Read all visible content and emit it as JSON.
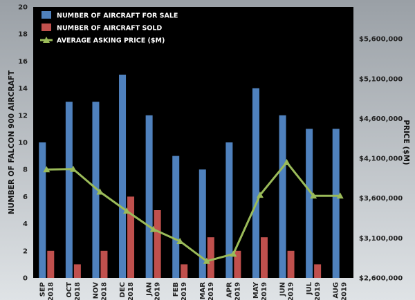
{
  "chart_data": {
    "type": "bar",
    "categories": [
      [
        "SEP",
        "2018"
      ],
      [
        "OCT",
        "2018"
      ],
      [
        "NOV",
        "2018"
      ],
      [
        "DEC",
        "2018"
      ],
      [
        "JAN",
        "2019"
      ],
      [
        "FEB",
        "2019"
      ],
      [
        "MAR",
        "2019"
      ],
      [
        "APR",
        "2019"
      ],
      [
        "MAY",
        "2019"
      ],
      [
        "JUN",
        "2019"
      ],
      [
        "JUL",
        "2019"
      ],
      [
        "AUG",
        "2019"
      ]
    ],
    "ylabel": "NUMBER OF FALCON 900 AIRCRAFT",
    "y2label": "PRICE ($M)",
    "ylim": [
      0,
      20
    ],
    "yticks": [
      0,
      2,
      4,
      6,
      8,
      10,
      12,
      14,
      16,
      18,
      20
    ],
    "y2lim": [
      2600000,
      6000000
    ],
    "y2ticks": [
      {
        "value": 2600000,
        "label": "$2,600,000"
      },
      {
        "value": 3100000,
        "label": "$3,100,000"
      },
      {
        "value": 3600000,
        "label": "$3,600,000"
      },
      {
        "value": 4100000,
        "label": "$4,100,000"
      },
      {
        "value": 4600000,
        "label": "$4,600,000"
      },
      {
        "value": 5100000,
        "label": "$5,100,000"
      },
      {
        "value": 5600000,
        "label": "$5,600,000"
      }
    ],
    "series": [
      {
        "name": "NUMBER OF AIRCRAFT FOR SALE",
        "kind": "bar",
        "axis": "left",
        "color": "#4f81bd",
        "values": [
          10,
          13,
          13,
          15,
          12,
          9,
          8,
          10,
          14,
          12,
          11,
          11
        ]
      },
      {
        "name": "NUMBER OF AIRCRAFT SOLD",
        "kind": "bar",
        "axis": "left",
        "color": "#c0504d",
        "values": [
          2,
          1,
          2,
          6,
          5,
          1,
          3,
          2,
          3,
          2,
          1,
          0
        ]
      },
      {
        "name": "AVERAGE ASKING PRICE ($M)",
        "kind": "line",
        "axis": "right",
        "color": "#9bbb59",
        "values": [
          3960000,
          3965000,
          3680000,
          3440000,
          3210000,
          3060000,
          2810000,
          2900000,
          3640000,
          4050000,
          3630000,
          3630000
        ]
      }
    ],
    "legend_position": "top-left",
    "grid": false,
    "colors": {
      "background": "#000000",
      "outer_gradient_top": "#9aa0a6",
      "outer_gradient_bottom": "#dfe3e6"
    }
  }
}
